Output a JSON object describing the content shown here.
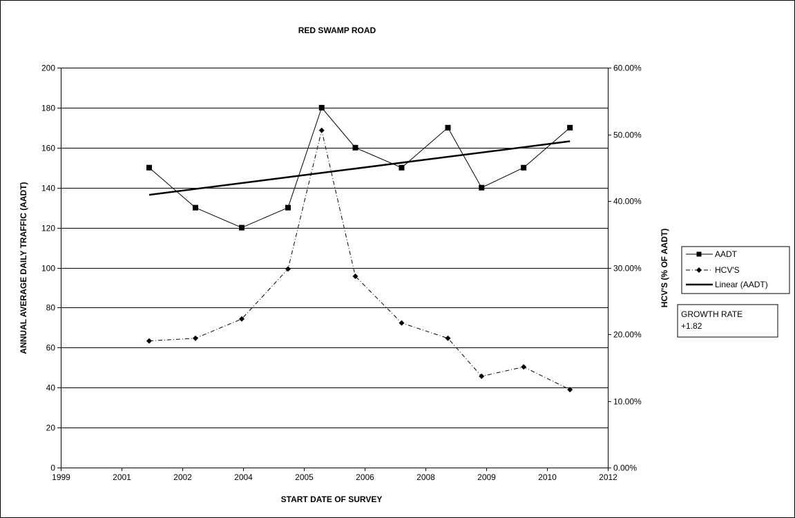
{
  "chart_data": {
    "type": "line",
    "title": "RED SWAMP ROAD",
    "xlabel": "START DATE OF SURVEY",
    "ylabel": "ANNUAL AVERAGE DAILY TRAFFIC (AADT)",
    "y2label": "HCV'S (% OF AADT)",
    "x_tick_labels": [
      "1999",
      "2001",
      "2002",
      "2004",
      "2005",
      "2006",
      "2008",
      "2009",
      "2010",
      "2012"
    ],
    "y_ticks": [
      0,
      20,
      40,
      60,
      80,
      100,
      120,
      140,
      160,
      180,
      200
    ],
    "y2_ticks": [
      "0.00%",
      "10.00%",
      "20.00%",
      "30.00%",
      "40.00%",
      "50.00%",
      "60.00%"
    ],
    "ylim": [
      0,
      200
    ],
    "y2lim": [
      0,
      0.6
    ],
    "grid": "horizontal major lines",
    "legend_position": "right",
    "x_points": [
      2001.1,
      2002.2,
      2003.3,
      2004.4,
      2005.2,
      2006.0,
      2007.1,
      2008.2,
      2009.0,
      2010.0,
      2011.1
    ],
    "series": [
      {
        "name": "AADT",
        "axis": "primary",
        "marker": "square",
        "line": "solid",
        "values": [
          150,
          130,
          120,
          130,
          180,
          160,
          150,
          170,
          140,
          150,
          170
        ]
      },
      {
        "name": "HCV'S",
        "axis": "secondary",
        "marker": "diamond",
        "line": "dash-dot",
        "values": [
          0.19,
          0.194,
          0.223,
          0.298,
          0.506,
          0.287,
          0.217,
          0.194,
          0.137,
          0.151,
          0.117
        ]
      },
      {
        "name": "Linear (AADT)",
        "axis": "primary",
        "marker": "none",
        "line": "thick-solid",
        "values": [
          136.4,
          163.2
        ]
      }
    ],
    "annotation": {
      "line1": "GROWTH RATE",
      "line2": "+1.82"
    }
  }
}
